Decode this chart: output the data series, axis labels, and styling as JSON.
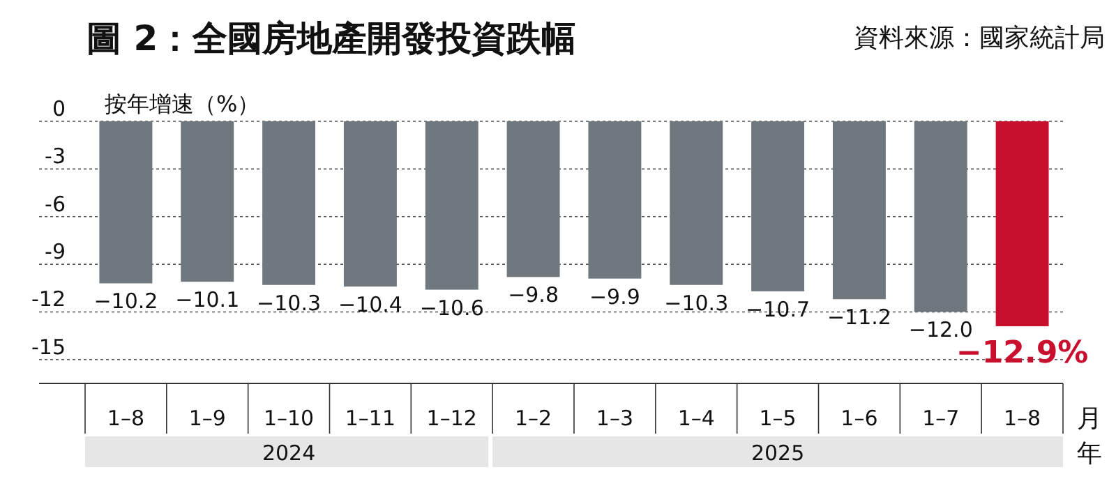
{
  "chart_data": {
    "type": "bar",
    "title": "圖 2：全國房地產開發投資跌幅",
    "ylabel": "按年增速（%）",
    "xlabel": "月",
    "annotations": [
      "資料來源：國家統計局",
      "2024",
      "2025",
      "年"
    ],
    "categories": [
      "1–8",
      "1–9",
      "1–10",
      "1–11",
      "1–12",
      "1–2",
      "1–3",
      "1–4",
      "1–5",
      "1–6",
      "1–7",
      "1–8"
    ],
    "values": [
      -10.2,
      -10.1,
      -10.3,
      -10.4,
      -10.6,
      -9.8,
      -9.9,
      -10.3,
      -10.7,
      -11.2,
      -12.0,
      -12.9
    ],
    "colors": [
      "#6e787e",
      "#6e787e",
      "#6e787e",
      "#6e787e",
      "#6e787e",
      "#6e787e",
      "#6e787e",
      "#6e787e",
      "#6e787e",
      "#6e787e",
      "#6e787e",
      "#c8102e"
    ],
    "value_labels": [
      "−10.2",
      "−10.1",
      "−10.3",
      "−10.4",
      "−10.6",
      "−9.8",
      "−9.9",
      "−10.3",
      "−10.7",
      "−11.2",
      "−12.0",
      "−12.9%"
    ],
    "ylim": [
      -16.5,
      0
    ],
    "yticks": [
      0,
      -3,
      -6,
      -9,
      -12,
      -15
    ],
    "grid": "y"
  }
}
